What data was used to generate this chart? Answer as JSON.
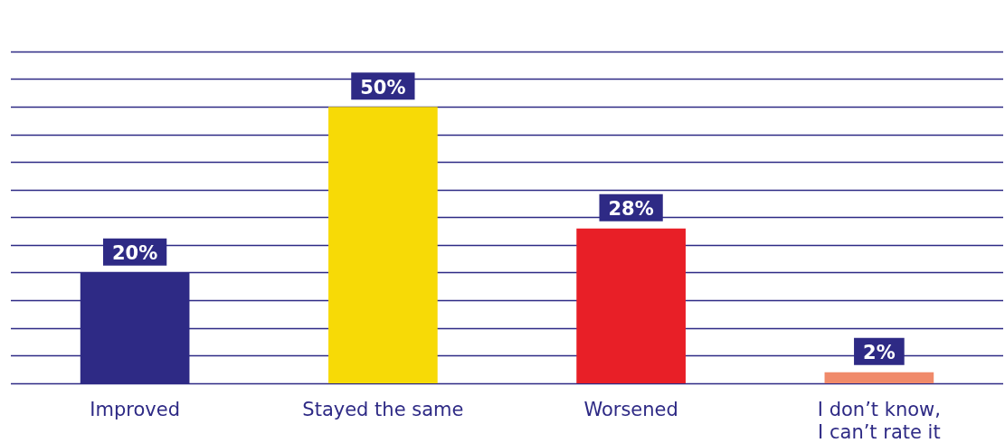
{
  "chart_data": {
    "type": "bar",
    "categories": [
      "Improved",
      "Stayed the same",
      "Worsened",
      "I don’t know, I can’t rate it"
    ],
    "values": [
      20,
      50,
      28,
      2
    ],
    "value_labels": [
      "20%",
      "50%",
      "28%",
      "2%"
    ],
    "colors": [
      "#2e2a85",
      "#f7da06",
      "#e81f27",
      "#f08a6a"
    ],
    "ylim": [
      0,
      60
    ],
    "yticks": [
      {
        "value": 0,
        "label": null
      },
      {
        "value": 5,
        "label": null
      },
      {
        "value": 10,
        "label": null
      },
      {
        "value": 15,
        "label": null
      },
      {
        "value": 20,
        "label": null
      },
      {
        "value": 25,
        "label": null
      },
      {
        "value": 30,
        "label": null
      },
      {
        "value": 35,
        "label": null
      },
      {
        "value": 40,
        "label": null
      },
      {
        "value": 45,
        "label": null
      },
      {
        "value": 50,
        "label": null
      },
      {
        "value": 55,
        "label": null
      },
      {
        "value": 60,
        "label": null
      }
    ],
    "grid": "y",
    "tick_labels": "x"
  }
}
